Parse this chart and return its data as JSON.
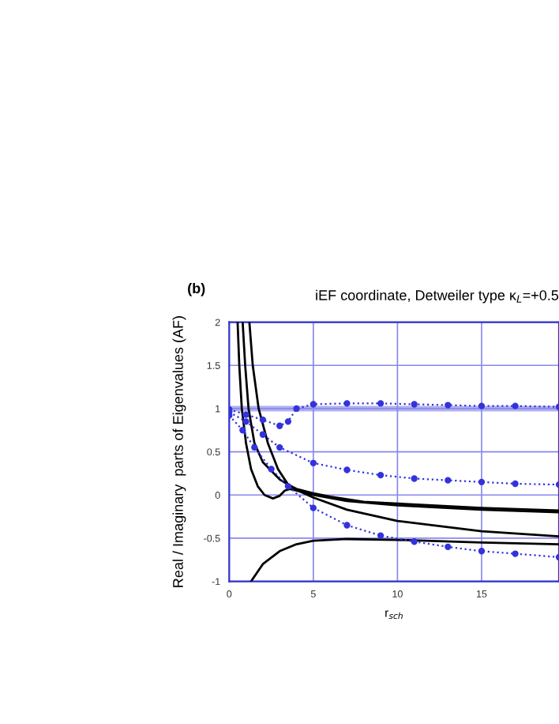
{
  "chart_data": {
    "type": "line",
    "title": "iEF coordinate, Detweiler type κ$_{L}$=+0.5",
    "xlabel": "r$_{sch}$",
    "ylabel": "Real / Imaginary  parts of Eigenvalues (AF)",
    "annotations": [
      "(b)"
    ],
    "xlim": [
      0,
      19.6
    ],
    "ylim": [
      -1,
      2
    ],
    "xticks": [
      0,
      5,
      10,
      15
    ],
    "yticks": [
      {
        "value": -1,
        "label": "-1"
      },
      {
        "value": -0.5,
        "label": "-0.5"
      },
      0,
      0.5,
      1,
      1.5,
      2
    ],
    "grid": true,
    "ref_lines": [
      {
        "axis": "y",
        "value": 1,
        "color": "#b0b0f0"
      }
    ],
    "series": [
      {
        "color": "#000000",
        "line_style": "solid",
        "marker": "none",
        "x": [
          0.5,
          0.6,
          0.75,
          1.0,
          1.3,
          1.7,
          2.1,
          2.6,
          3.0,
          3.3,
          3.6,
          4,
          5,
          7,
          10,
          15,
          19.6
        ],
        "values": [
          2,
          1.5,
          1,
          0.6,
          0.3,
          0.1,
          0.0,
          -0.04,
          -0.01,
          0.05,
          0.07,
          0.05,
          0.0,
          -0.07,
          -0.12,
          -0.17,
          -0.2
        ]
      },
      {
        "color": "#000000",
        "line_style": "solid",
        "marker": "none",
        "x": [
          0.8,
          0.95,
          1.15,
          1.5,
          2,
          3,
          4,
          5,
          7,
          10,
          15,
          19.6
        ],
        "values": [
          2,
          1.5,
          1,
          0.6,
          0.38,
          0.18,
          0.06,
          -0.03,
          -0.17,
          -0.3,
          -0.42,
          -0.48
        ]
      },
      {
        "color": "#000000",
        "line_style": "solid",
        "marker": "none",
        "x": [
          1.2,
          1.4,
          1.75,
          2.3,
          2.9,
          3.5,
          4,
          5,
          6,
          8,
          10,
          15,
          19.6
        ],
        "values": [
          2,
          1.5,
          1,
          0.6,
          0.3,
          0.12,
          0.07,
          0.02,
          -0.02,
          -0.08,
          -0.1,
          -0.15,
          -0.18
        ]
      },
      {
        "color": "#000000",
        "line_style": "solid",
        "marker": "none",
        "x": [
          1.3,
          2,
          3,
          4,
          5,
          7,
          10,
          15,
          19.6
        ],
        "values": [
          -1,
          -0.8,
          -0.65,
          -0.57,
          -0.53,
          -0.51,
          -0.52,
          -0.55,
          -0.57
        ]
      },
      {
        "color": "#3333dd",
        "line_style": "dotted",
        "marker": "circle",
        "x": [
          0,
          1,
          2,
          3,
          3.5,
          4,
          5,
          7,
          9,
          11,
          13,
          15,
          17,
          19.6
        ],
        "values": [
          0.99,
          0.93,
          0.87,
          0.8,
          0.85,
          1.0,
          1.05,
          1.06,
          1.06,
          1.05,
          1.04,
          1.03,
          1.03,
          1.02
        ]
      },
      {
        "color": "#3333dd",
        "line_style": "dotted",
        "marker": "circle",
        "x": [
          0,
          1,
          2,
          3,
          5,
          7,
          9,
          11,
          13,
          15,
          17,
          19.6
        ],
        "values": [
          0.96,
          0.85,
          0.7,
          0.55,
          0.37,
          0.29,
          0.23,
          0.19,
          0.17,
          0.15,
          0.13,
          0.12
        ]
      },
      {
        "color": "#3333dd",
        "line_style": "dotted",
        "marker": "circle",
        "x": [
          0,
          0.8,
          1.5,
          2.5,
          3.5,
          5,
          7,
          9,
          11,
          13,
          15,
          17,
          19.6
        ],
        "values": [
          0.92,
          0.75,
          0.55,
          0.3,
          0.1,
          -0.15,
          -0.35,
          -0.47,
          -0.54,
          -0.6,
          -0.65,
          -0.68,
          -0.72
        ]
      }
    ]
  }
}
